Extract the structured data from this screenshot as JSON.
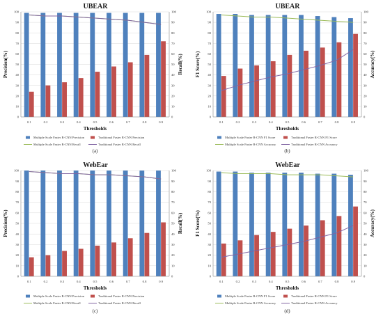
{
  "chart_data": [
    {
      "type": "bar",
      "caption": "(a)",
      "title": "UBEAR",
      "xlabel": "Thresholds",
      "ylabel": "Precision(%)",
      "y2label": "Recall(%)",
      "categories": [
        "0.1",
        "0.2",
        "0.3",
        "0.4",
        "0.5",
        "0.6",
        "0.7",
        "0.8",
        "0.9"
      ],
      "ylim": [
        0,
        100
      ],
      "y2lim": [
        0,
        100
      ],
      "yticks": [
        "0",
        "10",
        "20",
        "30",
        "40",
        "50",
        "60",
        "70",
        "80",
        "90",
        "100"
      ],
      "series": [
        {
          "name": "Multiple Scale Faster R-CNN Precision",
          "kind": "bar",
          "color": "#4f81bd",
          "values": [
            99,
            99,
            99,
            99,
            99,
            99,
            99,
            99,
            99
          ]
        },
        {
          "name": "Traditional Faster R-CNN Precision",
          "kind": "bar",
          "color": "#c0504d",
          "values": [
            24,
            30,
            33,
            37,
            43,
            48,
            52,
            59,
            72
          ]
        },
        {
          "name": "Multiple Scale Faster R-CNN Recall",
          "kind": "line",
          "color": "#9bbb59",
          "values": [
            97,
            96,
            96,
            95,
            94,
            93,
            92,
            90,
            88
          ]
        },
        {
          "name": "Traditional Faster R-CNN Recall",
          "kind": "line",
          "color": "#8064a2",
          "values": [
            97,
            96,
            96,
            95,
            94,
            93,
            92,
            90,
            88
          ]
        }
      ],
      "legend_position": "bottom"
    },
    {
      "type": "bar",
      "caption": "(b)",
      "title": "UBEAR",
      "xlabel": "Thresholds",
      "ylabel": "F1 Score(%)",
      "y2label": "Accuracy(%)",
      "categories": [
        "0.1",
        "0.2",
        "0.3",
        "0.4",
        "0.5",
        "0.6",
        "0.7",
        "0.8",
        "0.9"
      ],
      "ylim": [
        0,
        100
      ],
      "y2lim": [
        0,
        100
      ],
      "yticks": [
        "0",
        "10",
        "20",
        "30",
        "40",
        "50",
        "60",
        "70",
        "80",
        "90",
        "100"
      ],
      "series": [
        {
          "name": "Multiple Scale Faster R-CNN F1 Score",
          "kind": "bar",
          "color": "#4f81bd",
          "values": [
            98,
            98,
            97,
            97,
            97,
            97,
            96,
            95,
            94
          ]
        },
        {
          "name": "Traditional Faster R-CNN F1 Score",
          "kind": "bar",
          "color": "#c0504d",
          "values": [
            39,
            46,
            49,
            53,
            59,
            63,
            66,
            71,
            79
          ]
        },
        {
          "name": "Multiple Scale Faster R-CNN Accuracy",
          "kind": "line",
          "color": "#9bbb59",
          "values": [
            97,
            96,
            95,
            95,
            94,
            93,
            92,
            91,
            90
          ]
        },
        {
          "name": "Traditional Faster R-CNN Accuracy",
          "kind": "line",
          "color": "#8064a2",
          "values": [
            25,
            30,
            34,
            38,
            41,
            45,
            49,
            54,
            64
          ]
        }
      ],
      "legend_position": "bottom"
    },
    {
      "type": "bar",
      "caption": "(c)",
      "title": "WebEar",
      "xlabel": "Thresholds",
      "ylabel": "Precision(%)",
      "y2label": "Recall(%)",
      "categories": [
        "0.1",
        "0.2",
        "0.3",
        "0.4",
        "0.5",
        "0.6",
        "0.7",
        "0.8",
        "0.9"
      ],
      "ylim": [
        0,
        100
      ],
      "y2lim": [
        0,
        100
      ],
      "yticks": [
        "0",
        "10",
        "20",
        "30",
        "40",
        "50",
        "60",
        "70",
        "80",
        "90",
        "100"
      ],
      "series": [
        {
          "name": "Multiple Scale Faster R-CNN Precision",
          "kind": "bar",
          "color": "#4f81bd",
          "values": [
            100,
            100,
            100,
            100,
            100,
            100,
            100,
            100,
            100
          ]
        },
        {
          "name": "Traditional Faster R-CNN Precision",
          "kind": "bar",
          "color": "#c0504d",
          "values": [
            18,
            20,
            24,
            26,
            29,
            32,
            36,
            41,
            51
          ]
        },
        {
          "name": "Multiple Scale Faster R-CNN Recall",
          "kind": "line",
          "color": "#9bbb59",
          "values": [
            99,
            98,
            97,
            97,
            96,
            96,
            95,
            94,
            92
          ]
        },
        {
          "name": "Traditional Faster R-CNN Recall",
          "kind": "line",
          "color": "#8064a2",
          "values": [
            99,
            98,
            97,
            97,
            96,
            96,
            95,
            94,
            92
          ]
        }
      ],
      "legend_position": "bottom"
    },
    {
      "type": "bar",
      "caption": "(d)",
      "title": "WebEar",
      "xlabel": "Thresholds",
      "ylabel": "F1 Score(%)",
      "y2label": "Accuracy(%)",
      "categories": [
        "0.1",
        "0.2",
        "0.3",
        "0.4",
        "0.5",
        "0.6",
        "0.7",
        "0.8",
        "0.9"
      ],
      "ylim": [
        0,
        100
      ],
      "y2lim": [
        0,
        100
      ],
      "yticks": [
        "0",
        "10",
        "20",
        "30",
        "40",
        "50",
        "60",
        "70",
        "80",
        "90",
        "100"
      ],
      "series": [
        {
          "name": "Multiple Scale Faster R-CNN F1 Score",
          "kind": "bar",
          "color": "#4f81bd",
          "values": [
            99,
            99,
            98,
            98,
            98,
            98,
            97,
            97,
            96
          ]
        },
        {
          "name": "Traditional Faster R-CNN F1 Score",
          "kind": "bar",
          "color": "#c0504d",
          "values": [
            31,
            34,
            39,
            42,
            45,
            48,
            53,
            57,
            66
          ]
        },
        {
          "name": "Multiple Scale Faster R-CNN Accuracy",
          "kind": "line",
          "color": "#9bbb59",
          "values": [
            98,
            97,
            97,
            97,
            96,
            96,
            96,
            95,
            94
          ]
        },
        {
          "name": "Traditional Faster R-CNN Accuracy",
          "kind": "line",
          "color": "#8064a2",
          "values": [
            18,
            21,
            24,
            27,
            30,
            33,
            37,
            41,
            48
          ]
        }
      ],
      "legend_position": "bottom"
    }
  ]
}
